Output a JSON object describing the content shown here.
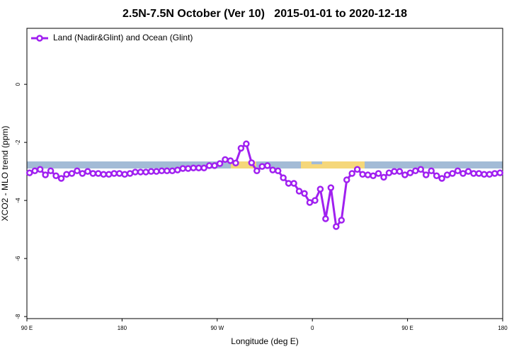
{
  "chart_data": {
    "type": "line",
    "title": "2.5N-7.5N October (Ver 10)   2015-01-01 to 2020-12-18",
    "x_label": "Longitude (deg E)",
    "y_label": "XCO2 - MLO trend (ppm)",
    "xlim": [
      90,
      540
    ],
    "xticks": [
      {
        "value": 90,
        "label": "90 E"
      },
      {
        "value": 180,
        "label": "180"
      },
      {
        "value": 270,
        "label": "90 W"
      },
      {
        "value": 360,
        "label": "0"
      },
      {
        "value": 450,
        "label": "90 E"
      },
      {
        "value": 540,
        "label": "180"
      }
    ],
    "ylim": [
      -8.07,
      1.93
    ],
    "yticks": [
      0,
      -2,
      -4,
      -6,
      -8
    ],
    "legend": "top-left",
    "x": [
      92.5,
      97.5,
      102.5,
      107.5,
      112.5,
      117.5,
      122.5,
      127.5,
      132.5,
      137.5,
      142.5,
      147.5,
      152.5,
      157.5,
      162.5,
      167.5,
      172.5,
      177.5,
      182.5,
      187.5,
      192.5,
      197.5,
      202.5,
      207.5,
      212.5,
      217.5,
      222.5,
      227.5,
      232.5,
      237.5,
      242.5,
      247.5,
      252.5,
      257.5,
      262.5,
      267.5,
      272.5,
      277.5,
      282.5,
      287.5,
      292.5,
      297.5,
      302.5,
      307.5,
      312.5,
      317.5,
      322.5,
      327.5,
      332.5,
      337.5,
      342.5,
      347.5,
      352.5,
      357.5,
      362.5,
      367.5,
      372.5,
      377.5,
      382.5,
      387.5,
      392.5,
      397.5,
      402.5,
      407.5,
      412.5,
      417.5,
      422.5,
      427.5,
      432.5,
      437.5,
      442.5,
      447.5,
      452.5,
      457.5,
      462.5,
      467.5,
      472.5,
      477.5,
      482.5,
      487.5,
      492.5,
      497.5,
      502.5,
      507.5,
      512.5,
      517.5,
      522.5,
      527.5,
      532.5,
      537.5
    ],
    "series": [
      {
        "name": "Land (Nadir&Glint) and Ocean (Glint)",
        "color": "#a020f0",
        "values": [
          -3.05,
          -2.98,
          -2.93,
          -3.12,
          -2.98,
          -3.15,
          -3.24,
          -3.1,
          -3.07,
          -2.98,
          -3.07,
          -3.0,
          -3.07,
          -3.07,
          -3.1,
          -3.1,
          -3.07,
          -3.07,
          -3.1,
          -3.07,
          -3.02,
          -3.02,
          -3.02,
          -3.0,
          -3.0,
          -2.98,
          -2.98,
          -2.98,
          -2.95,
          -2.9,
          -2.9,
          -2.88,
          -2.88,
          -2.88,
          -2.8,
          -2.8,
          -2.73,
          -2.59,
          -2.63,
          -2.71,
          -2.2,
          -2.05,
          -2.7,
          -2.98,
          -2.83,
          -2.8,
          -2.95,
          -2.98,
          -3.22,
          -3.41,
          -3.41,
          -3.68,
          -3.76,
          -4.07,
          -4.0,
          -3.61,
          -4.63,
          -3.56,
          -4.9,
          -4.68,
          -3.29,
          -3.07,
          -2.93,
          -3.1,
          -3.12,
          -3.15,
          -3.07,
          -3.2,
          -3.05,
          -3.0,
          -3.0,
          -3.12,
          -3.05,
          -2.98,
          -2.93,
          -3.12,
          -2.98,
          -3.15,
          -3.24,
          -3.12,
          -3.07,
          -2.98,
          -3.07,
          -3.0,
          -3.07,
          -3.07,
          -3.1,
          -3.1,
          -3.07,
          -3.05
        ]
      }
    ]
  }
}
